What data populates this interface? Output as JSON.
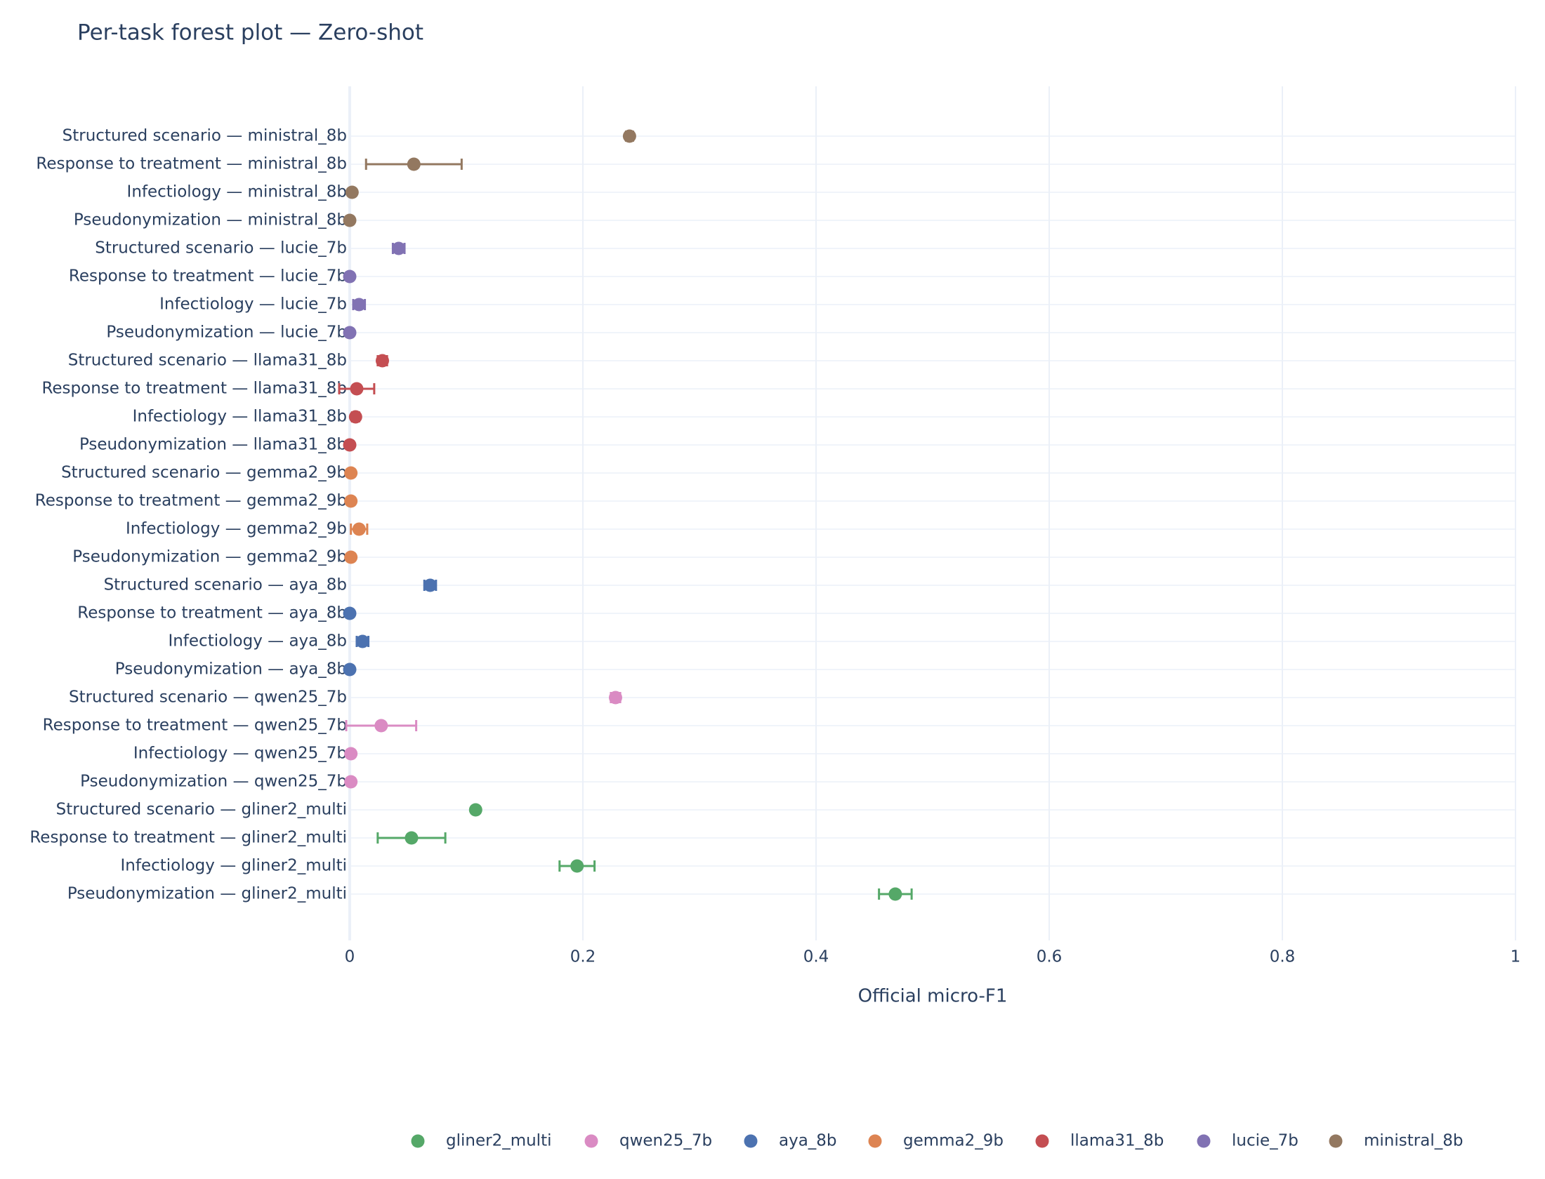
{
  "chart_data": {
    "type": "forest",
    "title": "Per-task forest plot — Zero-shot",
    "x_label": "Official micro-F1",
    "categories": [
      "Structured scenario — ministral_8b",
      "Response to treatment — ministral_8b",
      "Infectiology — ministral_8b",
      "Pseudonymization — ministral_8b",
      "Structured scenario — lucie_7b",
      "Response to treatment — lucie_7b",
      "Infectiology — lucie_7b",
      "Pseudonymization — lucie_7b",
      "Structured scenario — llama31_8b",
      "Response to treatment — llama31_8b",
      "Infectiology — llama31_8b",
      "Pseudonymization — llama31_8b",
      "Structured scenario — gemma2_9b",
      "Response to treatment — gemma2_9b",
      "Infectiology — gemma2_9b",
      "Pseudonymization — gemma2_9b",
      "Structured scenario — aya_8b",
      "Response to treatment — aya_8b",
      "Infectiology — aya_8b",
      "Pseudonymization — aya_8b",
      "Structured scenario — qwen25_7b",
      "Response to treatment — qwen25_7b",
      "Infectiology — qwen25_7b",
      "Pseudonymization — qwen25_7b",
      "Structured scenario — gliner2_multi",
      "Response to treatment — gliner2_multi",
      "Infectiology — gliner2_multi",
      "Pseudonymization — gliner2_multi"
    ],
    "series": [
      {
        "name": "gliner2_multi",
        "color": "#55a868",
        "values": [
          null,
          null,
          null,
          null,
          null,
          null,
          null,
          null,
          null,
          null,
          null,
          null,
          null,
          null,
          null,
          null,
          null,
          null,
          null,
          null,
          null,
          null,
          null,
          null,
          0.108,
          0.053,
          0.195,
          0.468
        ],
        "errors": [
          null,
          null,
          null,
          null,
          null,
          null,
          null,
          null,
          null,
          null,
          null,
          null,
          null,
          null,
          null,
          null,
          null,
          null,
          null,
          null,
          null,
          null,
          null,
          null,
          0,
          0.029,
          0.015,
          0.014
        ]
      },
      {
        "name": "qwen25_7b",
        "color": "#da8bc3",
        "values": [
          null,
          null,
          null,
          null,
          null,
          null,
          null,
          null,
          null,
          null,
          null,
          null,
          null,
          null,
          null,
          null,
          null,
          null,
          null,
          null,
          0.228,
          0.027,
          0.001,
          0.001,
          null,
          null,
          null,
          null
        ],
        "errors": [
          null,
          null,
          null,
          null,
          null,
          null,
          null,
          null,
          null,
          null,
          null,
          null,
          null,
          null,
          null,
          null,
          null,
          null,
          null,
          null,
          0.004,
          0.03,
          0,
          0,
          null,
          null,
          null,
          null
        ]
      },
      {
        "name": "aya_8b",
        "color": "#4c72b0",
        "values": [
          null,
          null,
          null,
          null,
          null,
          null,
          null,
          null,
          null,
          null,
          null,
          null,
          null,
          null,
          null,
          null,
          0.069,
          0,
          0.011,
          0,
          null,
          null,
          null,
          null,
          null,
          null,
          null,
          null
        ],
        "errors": [
          null,
          null,
          null,
          null,
          null,
          null,
          null,
          null,
          null,
          null,
          null,
          null,
          null,
          null,
          null,
          null,
          0.005,
          0,
          0.005,
          0,
          null,
          null,
          null,
          null,
          null,
          null,
          null,
          null
        ]
      },
      {
        "name": "gemma2_9b",
        "color": "#dd8452",
        "values": [
          null,
          null,
          null,
          null,
          null,
          null,
          null,
          null,
          null,
          null,
          null,
          null,
          0.001,
          0.001,
          0.008,
          0.001,
          null,
          null,
          null,
          null,
          null,
          null,
          null,
          null,
          null,
          null,
          null,
          null
        ],
        "errors": [
          null,
          null,
          null,
          null,
          null,
          null,
          null,
          null,
          null,
          null,
          null,
          null,
          0,
          0,
          0.007,
          0,
          null,
          null,
          null,
          null,
          null,
          null,
          null,
          null,
          null,
          null,
          null,
          null
        ]
      },
      {
        "name": "llama31_8b",
        "color": "#c44e52",
        "values": [
          null,
          null,
          null,
          null,
          null,
          null,
          null,
          null,
          0.028,
          0.006,
          0.005,
          0,
          null,
          null,
          null,
          null,
          null,
          null,
          null,
          null,
          null,
          null,
          null,
          null,
          null,
          null,
          null,
          null
        ],
        "errors": [
          null,
          null,
          null,
          null,
          null,
          null,
          null,
          null,
          0.004,
          0.015,
          0.003,
          0,
          null,
          null,
          null,
          null,
          null,
          null,
          null,
          null,
          null,
          null,
          null,
          null,
          null,
          null,
          null,
          null
        ]
      },
      {
        "name": "lucie_7b",
        "color": "#8172b3",
        "values": [
          null,
          null,
          null,
          null,
          0.042,
          0,
          0.008,
          0,
          null,
          null,
          null,
          null,
          null,
          null,
          null,
          null,
          null,
          null,
          null,
          null,
          null,
          null,
          null,
          null,
          null,
          null,
          null,
          null
        ],
        "errors": [
          null,
          null,
          null,
          null,
          0.005,
          0,
          0.005,
          0,
          null,
          null,
          null,
          null,
          null,
          null,
          null,
          null,
          null,
          null,
          null,
          null,
          null,
          null,
          null,
          null,
          null,
          null,
          null,
          null
        ]
      },
      {
        "name": "ministral_8b",
        "color": "#937860",
        "values": [
          0.24,
          0.055,
          0.002,
          0,
          null,
          null,
          null,
          null,
          null,
          null,
          null,
          null,
          null,
          null,
          null,
          null,
          null,
          null,
          null,
          null,
          null,
          null,
          null,
          null,
          null,
          null,
          null,
          null
        ],
        "errors": [
          0.003,
          0.041,
          0,
          0,
          null,
          null,
          null,
          null,
          null,
          null,
          null,
          null,
          null,
          null,
          null,
          null,
          null,
          null,
          null,
          null,
          null,
          null,
          null,
          null,
          null,
          null,
          null,
          null
        ]
      }
    ],
    "xlim": [
      0,
      1
    ],
    "xticks": [
      0,
      0.2,
      0.4,
      0.6,
      0.8,
      1
    ],
    "grid": true,
    "legend": "bottom"
  }
}
